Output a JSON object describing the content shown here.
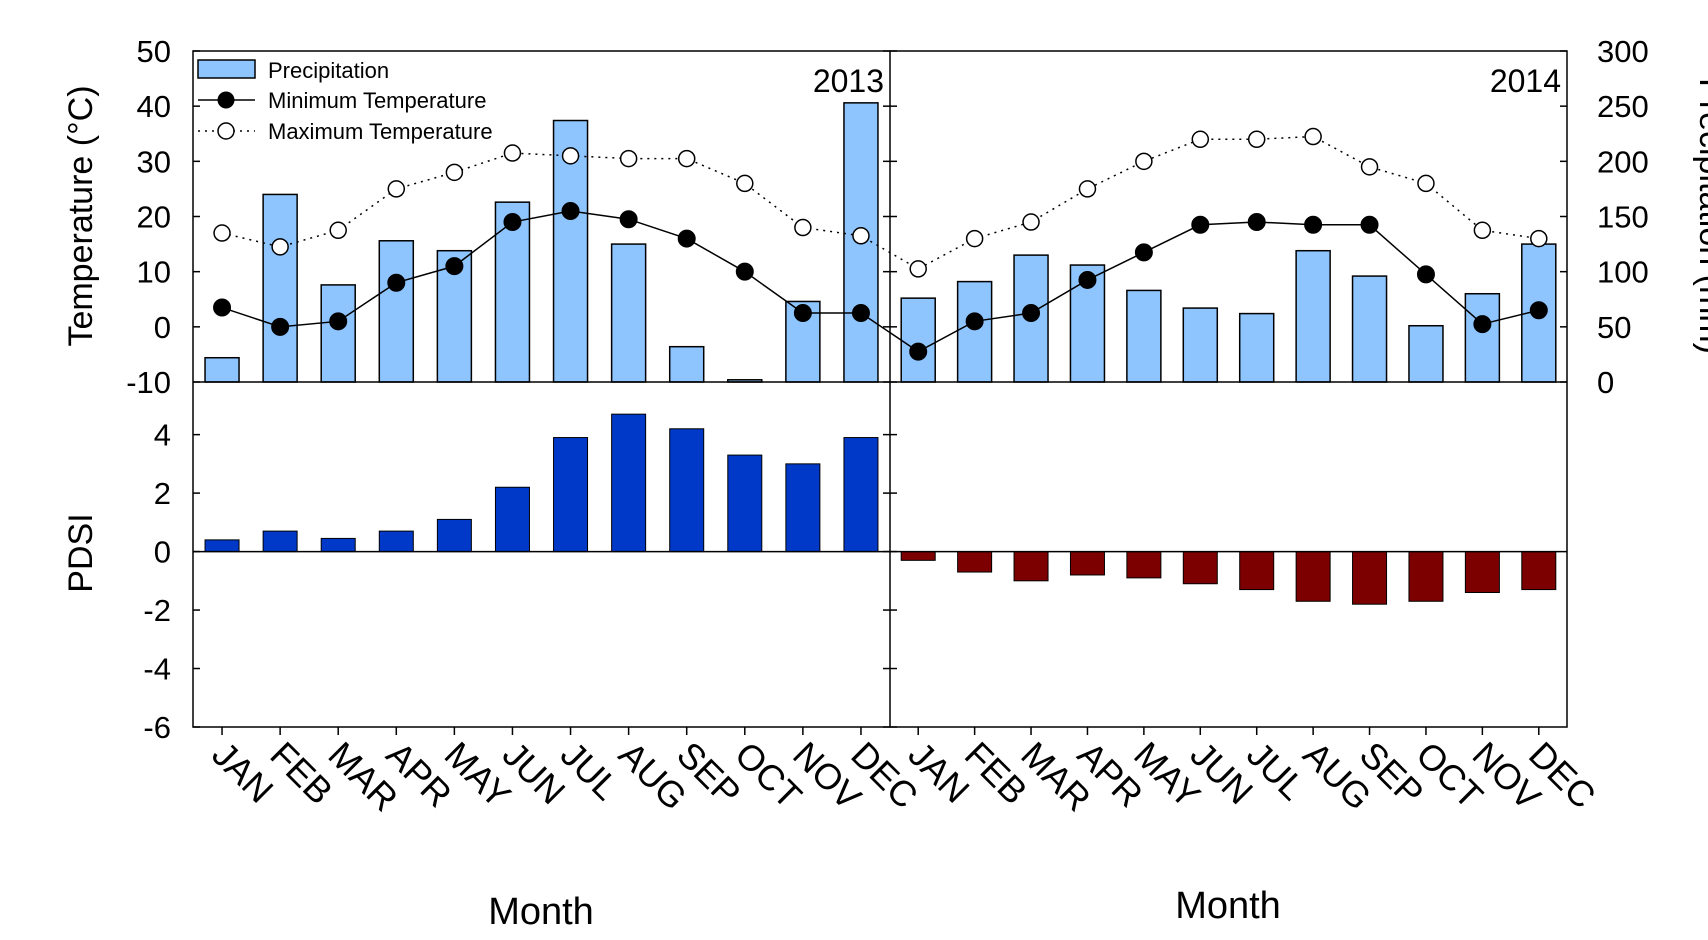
{
  "chart_data": {
    "type": "bar",
    "categories": [
      "JAN",
      "FEB",
      "MAR",
      "APR",
      "MAY",
      "JUN",
      "JUL",
      "AUG",
      "SEP",
      "OCT",
      "NOV",
      "DEC"
    ],
    "xlabel": "Month",
    "panels": [
      {
        "year": "2013",
        "precipitation": [
          22,
          170,
          88,
          128,
          119,
          163,
          237,
          125,
          32,
          2,
          73,
          253
        ],
        "min_temperature": [
          3.5,
          0.0,
          1.0,
          8.0,
          11.0,
          19.0,
          21.0,
          19.5,
          16.0,
          10.0,
          2.5,
          2.5
        ],
        "max_temperature": [
          17.0,
          14.5,
          17.5,
          25.0,
          28.0,
          31.5,
          31.0,
          30.5,
          30.5,
          26.0,
          18.0,
          16.5
        ],
        "pdsi": [
          0.4,
          0.7,
          0.45,
          0.7,
          1.1,
          2.2,
          3.9,
          4.7,
          4.2,
          3.3,
          3.0,
          3.9
        ]
      },
      {
        "year": "2014",
        "precipitation": [
          76,
          91,
          115,
          106,
          83,
          67,
          62,
          119,
          96,
          51,
          80,
          125
        ],
        "min_temperature": [
          -4.5,
          1.0,
          2.5,
          8.5,
          13.5,
          18.5,
          19.0,
          18.5,
          18.5,
          9.5,
          0.5,
          3.0
        ],
        "max_temperature": [
          10.5,
          16.0,
          19.0,
          25.0,
          30.0,
          34.0,
          34.0,
          34.5,
          29.0,
          26.0,
          17.5,
          16.0
        ],
        "pdsi": [
          -0.3,
          -0.7,
          -1.0,
          -0.8,
          -0.9,
          -1.1,
          -1.3,
          -1.7,
          -1.8,
          -1.7,
          -1.4,
          -1.3
        ]
      }
    ],
    "top_axis": {
      "ylabel_left": "Temperature (°C)",
      "ylim_left": [
        -10,
        50
      ],
      "ticks_left": [
        -10,
        0,
        10,
        20,
        30,
        40,
        50
      ],
      "ylabel_right": "Precipitation (mm)",
      "ylim_right": [
        0,
        300
      ],
      "ticks_right": [
        0,
        50,
        100,
        150,
        200,
        250,
        300
      ]
    },
    "bottom_axis": {
      "ylabel": "PDSI",
      "ylim": [
        -6,
        5.8
      ],
      "ticks": [
        -6,
        -4,
        -2,
        0,
        2,
        4
      ]
    },
    "legend": {
      "placement": "top-left",
      "entries": [
        {
          "label": "Precipitation",
          "marker": "bar"
        },
        {
          "label": "Minimum Temperature",
          "marker": "filled-circle-solid-line"
        },
        {
          "label": "Maximum Temperature",
          "marker": "open-circle-dotted-line"
        }
      ]
    },
    "colors": {
      "precipitation": "#8ec5ff",
      "pdsi_positive": "#0039c8",
      "pdsi_negative": "#7d0000",
      "line": "#000000"
    }
  }
}
